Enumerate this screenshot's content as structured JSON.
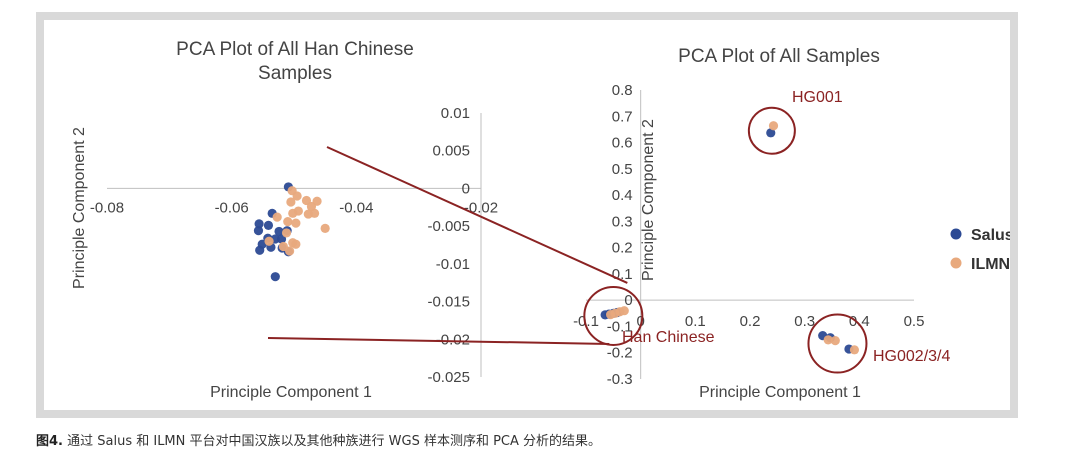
{
  "chart_data": [
    {
      "type": "scatter",
      "title": "PCA Plot of All Han Chinese Samples",
      "title_lines": [
        "PCA Plot of All Han Chinese",
        "Samples"
      ],
      "xlabel": "Principle Component 1",
      "ylabel": "Principle Component 2",
      "xlim": [
        -0.08,
        -0.02
      ],
      "ylim": [
        -0.025,
        0.01
      ],
      "x_ticks": [
        -0.08,
        -0.06,
        -0.04,
        -0.02
      ],
      "x_tick_labels": [
        "-0.08",
        "-0.06",
        "-0.04",
        "-0.02"
      ],
      "y_ticks": [
        0.01,
        0.005,
        0,
        -0.005,
        -0.01,
        -0.015,
        -0.02,
        -0.025
      ],
      "y_tick_labels": [
        "0.01",
        "0.005",
        "0",
        "-0.005",
        "-0.01",
        "-0.015",
        "-0.02",
        "-0.025"
      ],
      "series": [
        {
          "name": "Salus",
          "color": "#2c4a94",
          "points": [
            [
              -0.0509,
              0.0002
            ],
            [
              -0.0535,
              -0.0033
            ],
            [
              -0.0556,
              -0.0047
            ],
            [
              -0.0541,
              -0.0049
            ],
            [
              -0.0557,
              -0.0056
            ],
            [
              -0.0524,
              -0.0057
            ],
            [
              -0.0511,
              -0.0056
            ],
            [
              -0.0542,
              -0.0066
            ],
            [
              -0.053,
              -0.0067
            ],
            [
              -0.052,
              -0.0067
            ],
            [
              -0.0551,
              -0.0074
            ],
            [
              -0.0537,
              -0.0078
            ],
            [
              -0.0519,
              -0.0079
            ],
            [
              -0.0555,
              -0.0082
            ],
            [
              -0.0509,
              -0.0084
            ],
            [
              -0.053,
              -0.0117
            ]
          ]
        },
        {
          "name": "ILMN",
          "color": "#e8a97d",
          "points": [
            [
              -0.0503,
              -0.0003
            ],
            [
              -0.0495,
              -0.001
            ],
            [
              -0.0505,
              -0.0018
            ],
            [
              -0.048,
              -0.0016
            ],
            [
              -0.0463,
              -0.0017
            ],
            [
              -0.0472,
              -0.0024
            ],
            [
              -0.0493,
              -0.003
            ],
            [
              -0.0502,
              -0.0033
            ],
            [
              -0.0477,
              -0.0034
            ],
            [
              -0.0467,
              -0.0033
            ],
            [
              -0.0527,
              -0.0038
            ],
            [
              -0.051,
              -0.0044
            ],
            [
              -0.0497,
              -0.0046
            ],
            [
              -0.045,
              -0.0053
            ],
            [
              -0.0512,
              -0.0059
            ],
            [
              -0.0502,
              -0.0072
            ],
            [
              -0.0497,
              -0.0074
            ],
            [
              -0.0517,
              -0.0077
            ],
            [
              -0.0507,
              -0.0083
            ],
            [
              -0.054,
              -0.007
            ]
          ]
        }
      ]
    },
    {
      "type": "scatter",
      "title": "PCA Plot of All Samples",
      "xlabel": "Principle Component 1",
      "ylabel": "Principle Component 2",
      "xlim": [
        -0.1,
        0.5
      ],
      "ylim": [
        -0.3,
        0.8
      ],
      "x_ticks": [
        -0.1,
        0,
        0.1,
        0.2,
        0.3,
        0.4,
        0.5
      ],
      "x_tick_labels": [
        "-0.1",
        "0",
        "0.1",
        "0.2",
        "0.3",
        "0.4",
        "0.5"
      ],
      "y_ticks": [
        0.8,
        0.7,
        0.6,
        0.5,
        0.4,
        0.3,
        0.2,
        0.1,
        0,
        -0.1,
        -0.2,
        -0.3
      ],
      "y_tick_labels": [
        "0.8",
        "0.7",
        "0.6",
        "0.5",
        "0.4",
        "0.3",
        "0.2",
        "0.1",
        "0",
        "-0.1",
        "-0.2",
        "-0.3"
      ],
      "series": [
        {
          "name": "Salus",
          "color": "#2c4a94",
          "points": [
            [
              0.238,
              0.637
            ],
            [
              0.333,
              -0.135
            ],
            [
              0.347,
              -0.143
            ],
            [
              0.381,
              -0.186
            ],
            [
              -0.065,
              -0.056
            ],
            [
              -0.058,
              -0.053
            ],
            [
              -0.05,
              -0.05
            ],
            [
              -0.043,
              -0.047
            ]
          ]
        },
        {
          "name": "ILMN",
          "color": "#e8a97d",
          "points": [
            [
              0.243,
              0.664
            ],
            [
              0.343,
              -0.151
            ],
            [
              0.356,
              -0.154
            ],
            [
              0.391,
              -0.189
            ],
            [
              -0.055,
              -0.055
            ],
            [
              -0.047,
              -0.05
            ],
            [
              -0.038,
              -0.044
            ],
            [
              -0.03,
              -0.04
            ]
          ]
        }
      ],
      "annotations": [
        {
          "label": "HG001",
          "cx": 0.24,
          "cy": 0.645
        },
        {
          "label": "HG002/3/4",
          "cx": 0.36,
          "cy": -0.165
        },
        {
          "label": "Han Chinese",
          "cx": -0.05,
          "cy": -0.06
        }
      ],
      "legend_position": "right",
      "legend": [
        {
          "name": "Salus",
          "color": "#2c4a94"
        },
        {
          "name": "ILMN",
          "color": "#e8a97d"
        }
      ]
    }
  ],
  "colors": {
    "axis": "#bfbfbf",
    "annotation": "#8b2323",
    "text": "#444444"
  },
  "caption": {
    "label": "图4.",
    "text": " 通过 Salus 和 ILMN 平台对中国汉族以及其他种族进行 WGS 样本测序和 PCA 分析的结果。"
  }
}
